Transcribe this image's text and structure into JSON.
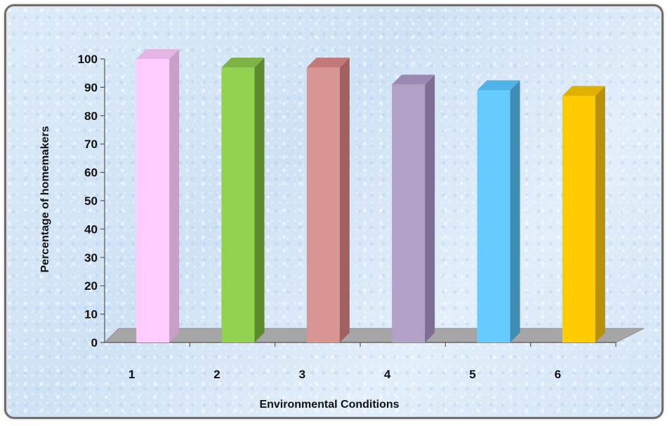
{
  "chart_data": {
    "type": "bar",
    "title": "",
    "xlabel": "Environmental Conditions",
    "ylabel": "Percentage of homemakers",
    "categories": [
      "1",
      "2",
      "3",
      "4",
      "5",
      "6"
    ],
    "values": [
      100,
      97,
      97,
      91,
      89,
      87
    ],
    "ylim": [
      0,
      100
    ],
    "yticks": [
      0,
      10,
      20,
      30,
      40,
      50,
      60,
      70,
      80,
      90,
      100
    ],
    "grid": false,
    "legend": "none",
    "style": "3d-column",
    "colors": [
      "#ffccff",
      "#92d050",
      "#d99594",
      "#b2a1c7",
      "#66ccff",
      "#ffcc00"
    ],
    "side_colors": [
      "#c79fc7",
      "#5e8a2e",
      "#a0605f",
      "#7d6f92",
      "#3f8db5",
      "#b8900a"
    ],
    "top_colors": [
      "#e3b5e3",
      "#7cb342",
      "#c27a79",
      "#9a89b2",
      "#4fb3e8",
      "#e0b000"
    ],
    "floor_color": "#a6a6a6"
  }
}
